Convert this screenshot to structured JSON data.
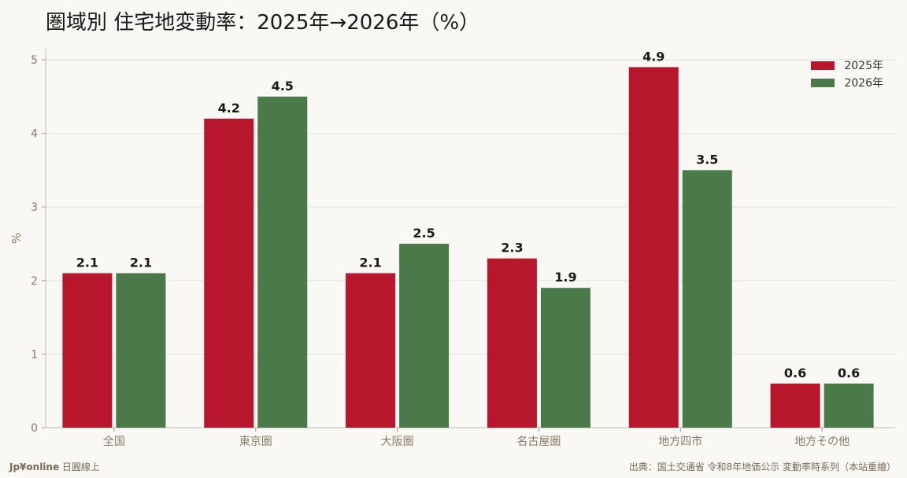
{
  "title": "圏域別 住宅地変動率：2025年→2026年（%）",
  "footer": {
    "brand": "Jp¥online",
    "brand_suffix": " 日圓線上",
    "source": "出典：国土交通省 令和8年地価公示 変動率時系列（本站重繪）"
  },
  "chart_data": {
    "type": "bar",
    "title": "圏域別 住宅地変動率：2025年→2026年（%）",
    "xlabel": "",
    "ylabel": "%",
    "ylim": [
      0,
      5.15
    ],
    "yticks": [
      0,
      1,
      2,
      3,
      4,
      5
    ],
    "grid": true,
    "legend_position": "top-right",
    "categories": [
      "全国",
      "東京圏",
      "大阪圏",
      "名古屋圏",
      "地方四市",
      "地方その他"
    ],
    "series": [
      {
        "name": "2025年",
        "color": "#b8162c",
        "values": [
          2.1,
          4.2,
          2.1,
          2.3,
          4.9,
          0.6
        ]
      },
      {
        "name": "2026年",
        "color": "#4a7a4a",
        "values": [
          2.1,
          4.5,
          2.5,
          1.9,
          3.5,
          0.6
        ]
      }
    ]
  }
}
